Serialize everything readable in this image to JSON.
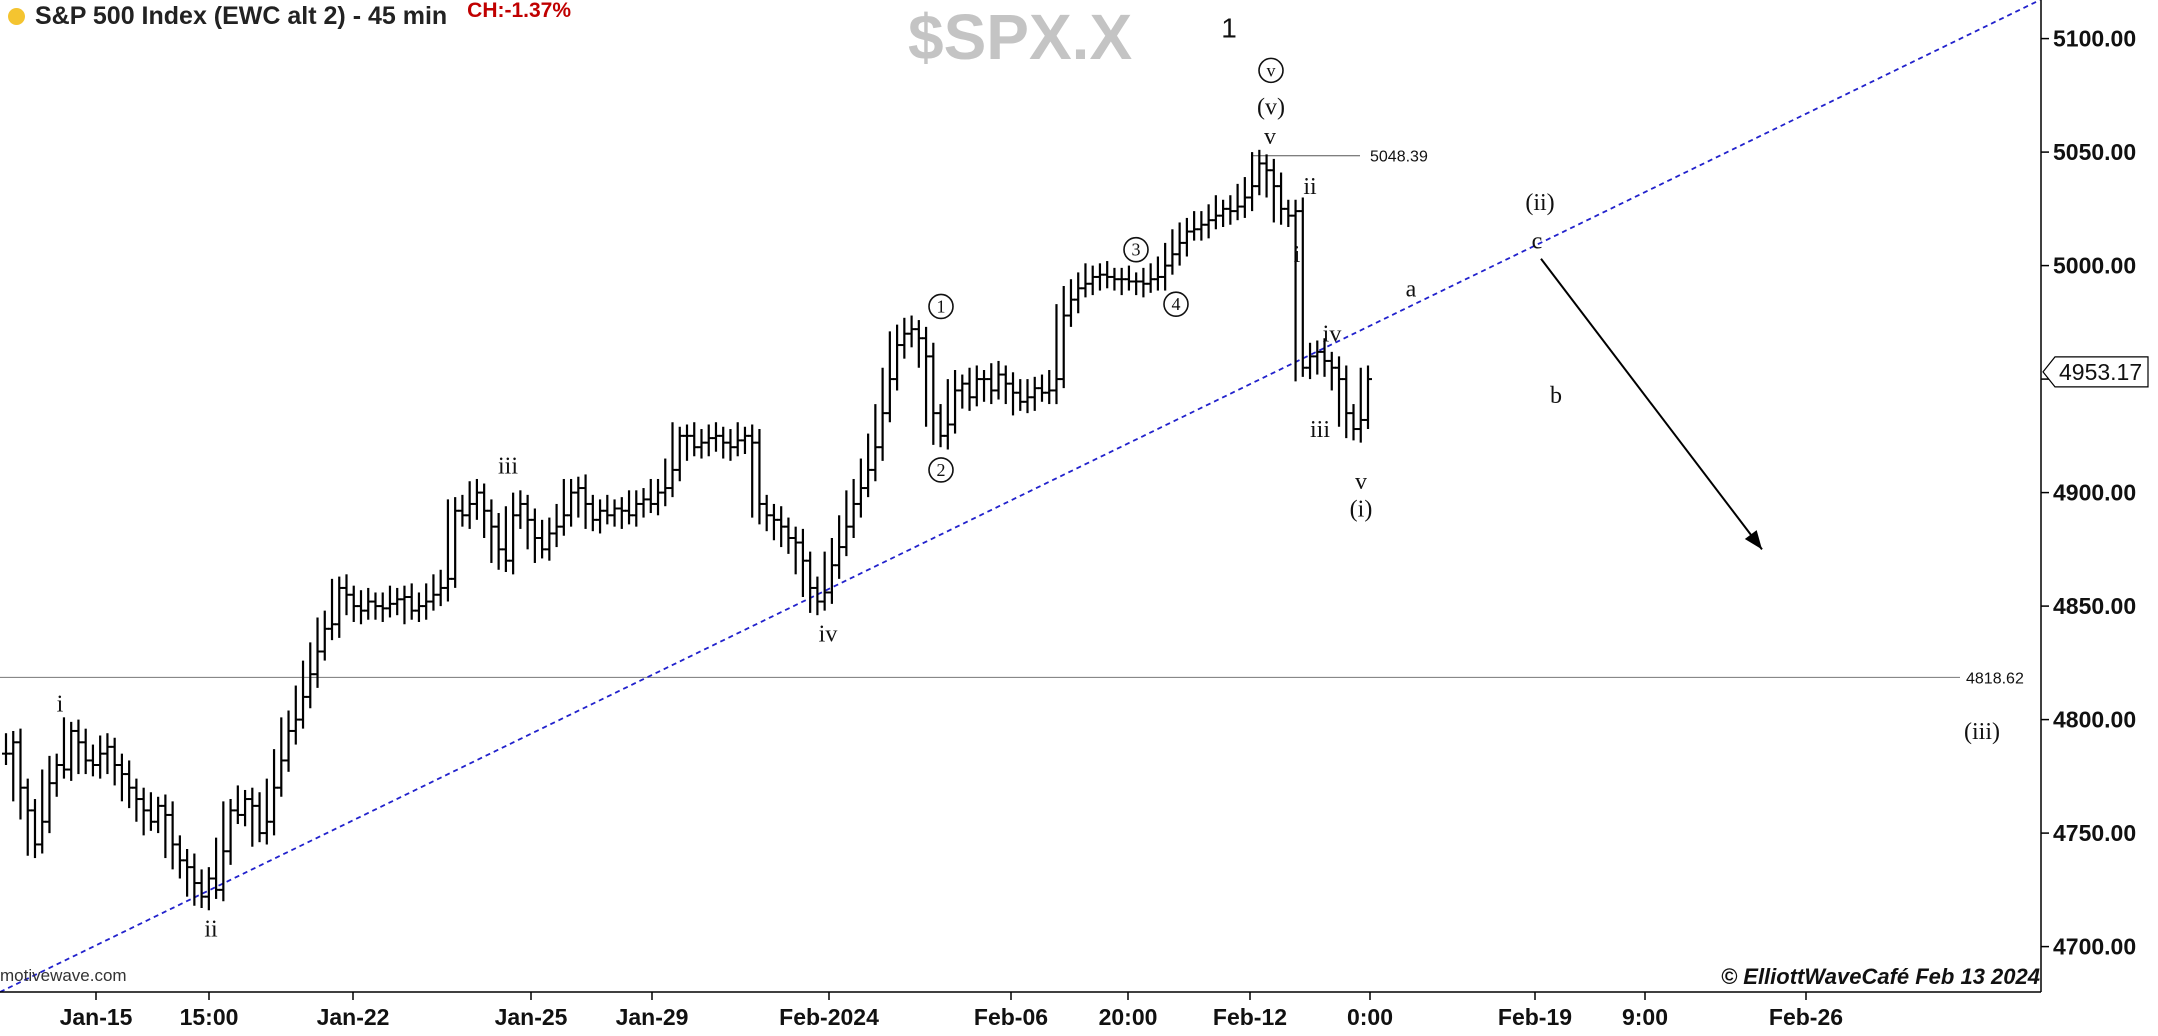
{
  "header": {
    "title": "S&P 500 Index (EWC alt 2) - 45 min",
    "change": "CH:-1.37%",
    "symbol": "$SPX.X"
  },
  "footer": {
    "source": "motivewave.com",
    "copyright": "© ElliottWaveCafé Feb 13 2024"
  },
  "colors": {
    "bars": "#000000",
    "trendline": "#2222cc",
    "change": "#c00000",
    "symbol": "#c4c4c4",
    "indicator_dot": "#f4c430"
  },
  "chart_data": {
    "type": "bar",
    "style": "ohlc",
    "ylim": [
      4680,
      5117
    ],
    "grid": false,
    "y_ticks": [
      {
        "value": 4700,
        "label": "4700.00"
      },
      {
        "value": 4750,
        "label": "4750.00"
      },
      {
        "value": 4800,
        "label": "4800.00"
      },
      {
        "value": 4850,
        "label": "4850.00"
      },
      {
        "value": 4900,
        "label": "4900.00"
      },
      {
        "value": 4950,
        "label": "4950.00"
      },
      {
        "value": 5000,
        "label": "5000.00"
      },
      {
        "value": 5050,
        "label": "5050.00"
      },
      {
        "value": 5100,
        "label": "5100.00"
      }
    ],
    "x_ticks": [
      "Jan-15",
      "15:00",
      "Jan-22",
      "Jan-25",
      "Jan-29",
      "Feb-2024",
      "Feb-06",
      "20:00",
      "Feb-12",
      "0:00",
      "Feb-19",
      "9:00",
      "Feb-26"
    ],
    "last_price": {
      "value": 4953.17,
      "label": "4953.17"
    },
    "levels": [
      {
        "value": 5048.39,
        "label": "5048.39"
      },
      {
        "value": 4818.62,
        "label": "4818.62"
      }
    ],
    "trendline": {
      "from": [
        0,
        4680
      ],
      "to": [
        1,
        5117
      ]
    },
    "forecast_arrow": {
      "from": {
        "x_tick": "Feb-19",
        "y": 5003
      },
      "to": {
        "y": 4875
      }
    },
    "bars": [
      4785,
      4790,
      4770,
      4760,
      4745,
      4755,
      4772,
      4780,
      4778,
      4795,
      4790,
      4782,
      4780,
      4785,
      4788,
      4780,
      4776,
      4770,
      4765,
      4760,
      4755,
      4762,
      4758,
      4745,
      4738,
      4735,
      4728,
      4722,
      4730,
      4725,
      4742,
      4760,
      4758,
      4765,
      4762,
      4750,
      4755,
      4770,
      4782,
      4795,
      4800,
      4810,
      4820,
      4830,
      4840,
      4842,
      4858,
      4855,
      4850,
      4848,
      4852,
      4850,
      4849,
      4851,
      4853,
      4854,
      4848,
      4850,
      4852,
      4855,
      4858,
      4862,
      4892,
      4890,
      4895,
      4900,
      4892,
      4885,
      4875,
      4870,
      4890,
      4895,
      4888,
      4880,
      4875,
      4882,
      4885,
      4890,
      4900,
      4902,
      4895,
      4888,
      4892,
      4890,
      4893,
      4892,
      4890,
      4895,
      4897,
      4895,
      4900,
      4902,
      4910,
      4925,
      4925,
      4920,
      4922,
      4924,
      4925,
      4922,
      4920,
      4923,
      4925,
      4922,
      4895,
      4890,
      4888,
      4885,
      4880,
      4878,
      4870,
      4858,
      4852,
      4856,
      4868,
      4876,
      4885,
      4895,
      4902,
      4910,
      4920,
      4935,
      4950,
      4965,
      4970,
      4972,
      4968,
      4960,
      4935,
      4925,
      4930,
      4945,
      4948,
      4942,
      4950,
      4950,
      4945,
      4952,
      4948,
      4944,
      4940,
      4942,
      4946,
      4944,
      4945,
      4950,
      4978,
      4985,
      4990,
      4992,
      4995,
      4996,
      4995,
      4994,
      4994,
      4993,
      4993,
      4992,
      4994,
      4995,
      5000,
      5005,
      5010,
      5015,
      5016,
      5018,
      5020,
      5022,
      5025,
      5024,
      5026,
      5030,
      5035,
      5045,
      5042,
      5035,
      5025,
      5022,
      5024,
      4955,
      4960,
      4962,
      4958,
      4955,
      4950,
      4935,
      4928,
      4932,
      4950
    ],
    "wave_labels": [
      {
        "text": "i",
        "x_tick": "Jan-15",
        "y": 4807
      },
      {
        "text": "ii",
        "x_tick": "15:00",
        "y": 4708
      },
      {
        "text": "iii",
        "x_tick": "Jan-25",
        "y": 4912
      },
      {
        "text": "iv",
        "x_tick": "Feb-2024",
        "y": 4838
      },
      {
        "text": "1",
        "circled": true,
        "x_tick": "Feb-2024",
        "y": 4982
      },
      {
        "text": "2",
        "circled": true,
        "x_tick": "Feb-2024",
        "y": 4910
      },
      {
        "text": "3",
        "circled": true,
        "x_tick": "20:00",
        "y": 5007
      },
      {
        "text": "4",
        "circled": true,
        "x_tick": "20:00",
        "y": 4983
      },
      {
        "text": "1",
        "x_tick": "Feb-12",
        "y": 5104
      },
      {
        "text": "v",
        "circled": true,
        "x_tick": "Feb-12",
        "y": 5086
      },
      {
        "text": "(v)",
        "x_tick": "Feb-12",
        "y": 5070
      },
      {
        "text": "v",
        "x_tick": "Feb-12",
        "y": 5057
      },
      {
        "text": "ii",
        "x_tick": "Feb-12",
        "y": 5035
      },
      {
        "text": "i",
        "x_tick": "Feb-12",
        "y": 5005
      },
      {
        "text": "iv",
        "x_tick": "Feb-12",
        "y": 4970
      },
      {
        "text": "iii",
        "x_tick": "Feb-12",
        "y": 4928
      },
      {
        "text": "v",
        "x_tick": "0:00",
        "y": 4905
      },
      {
        "text": "(i)",
        "x_tick": "0:00",
        "y": 4893
      },
      {
        "text": "a",
        "x_tick": "0:00",
        "y": 4990
      },
      {
        "text": "b",
        "x_tick": "Feb-19",
        "y": 4943
      },
      {
        "text": "(ii)",
        "x_tick": "Feb-19",
        "y": 5028
      },
      {
        "text": "c",
        "x_tick": "Feb-19",
        "y": 5011
      },
      {
        "text": "(iii)",
        "x_tick": "Feb-26",
        "y": 4795
      }
    ]
  }
}
